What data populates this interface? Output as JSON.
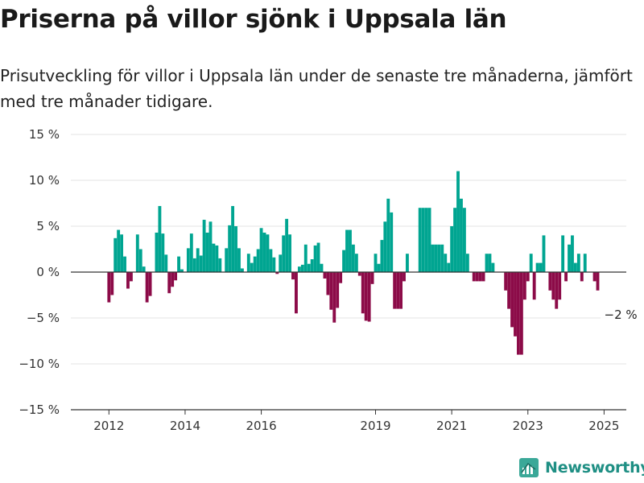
{
  "title": "Priserna på villor sjönk i Uppsala län",
  "subtitle": "Prisutveckling för villor i Uppsala län under de senaste tre månaderna, jämfört med tre månader tidigare.",
  "brand": {
    "name": "Newsworthy",
    "logo_icon": "newsworthy-logo-icon"
  },
  "colors": {
    "positive": "#00a591",
    "negative": "#8c0b48",
    "grid": "#e3e3e3",
    "zero": "#333333",
    "brand": "#1f8f84"
  },
  "chart_data": {
    "type": "bar",
    "ylim": [
      -15,
      15
    ],
    "yticks": [
      {
        "value": 15,
        "label": "15 %"
      },
      {
        "value": 10,
        "label": "10 %"
      },
      {
        "value": 5,
        "label": "5 %"
      },
      {
        "value": 0,
        "label": "0 %"
      },
      {
        "value": -5,
        "label": "−5 %"
      },
      {
        "value": -10,
        "label": "−10 %"
      },
      {
        "value": -15,
        "label": "−15 %"
      }
    ],
    "xlim": [
      "2011-01",
      "2025-08"
    ],
    "xticks": [
      {
        "date": "2012-01",
        "label": "2012"
      },
      {
        "date": "2014-01",
        "label": "2014"
      },
      {
        "date": "2016-01",
        "label": "2016"
      },
      {
        "date": "2019-01",
        "label": "2019"
      },
      {
        "date": "2021-01",
        "label": "2021"
      },
      {
        "date": "2023-01",
        "label": "2023"
      },
      {
        "date": "2025-01",
        "label": "2025"
      }
    ],
    "grid": true,
    "series": [
      {
        "start": "2012-01",
        "values": [
          -3.3,
          -2.5,
          3.7,
          4.6,
          4.1,
          1.7,
          -1.8,
          -1.0,
          null,
          4.1,
          2.5,
          0.6,
          -3.3,
          -2.6,
          null,
          4.3,
          7.2,
          4.2,
          1.9,
          -2.3,
          -1.6,
          -0.9,
          1.7,
          0.3,
          null,
          2.6,
          4.2,
          1.5,
          2.6,
          1.8,
          5.7,
          4.3,
          5.5,
          3.1,
          2.9,
          1.5,
          null,
          2.6,
          5.1,
          7.2,
          5.0,
          2.6,
          0.4,
          null,
          2.0,
          1.0,
          1.7,
          2.5,
          4.8,
          4.3,
          4.1,
          2.5,
          1.6,
          -0.2,
          1.9,
          4.0,
          5.8,
          4.1,
          -0.8,
          -4.5,
          0.6,
          0.8,
          3.0,
          0.9,
          1.4,
          2.9,
          3.2,
          0.9,
          -0.7,
          -2.5,
          -4.1,
          -5.5,
          -3.9,
          -1.2,
          2.4,
          4.6,
          4.6,
          3.0,
          2.0,
          -0.4,
          -4.5,
          -5.3,
          -5.4,
          -1.3,
          2.0,
          0.9,
          3.5,
          5.5,
          8.0,
          6.5,
          -4.0,
          -4.0,
          -4.0,
          -1.0,
          2.0,
          null,
          null,
          null,
          7.0,
          7.0,
          7.0,
          7.0,
          3.0,
          3.0,
          3.0,
          3.0,
          2.0,
          1.0,
          5.0,
          7.0,
          11.0,
          8.0,
          7.0,
          2.0,
          null,
          -1.0,
          -1.0,
          -1.0,
          -1.0,
          2.0,
          2.0,
          1.0,
          null,
          null,
          null,
          -2.0,
          -4.0,
          -6.0,
          -7.0,
          -9.0,
          -9.0,
          -3.0,
          -1.0,
          2.0,
          -3.0,
          1.0,
          1.0,
          4.0,
          null,
          -2.0,
          -3.0,
          -4.0,
          -3.0,
          4.0,
          -1.0,
          3.0,
          4.0,
          1.0,
          2.0,
          -1.0,
          2.0,
          null,
          null,
          -1.0,
          -2.0
        ]
      }
    ],
    "annotations": [
      {
        "label": "−2 %",
        "date": "2025-06",
        "value": -2
      }
    ]
  }
}
